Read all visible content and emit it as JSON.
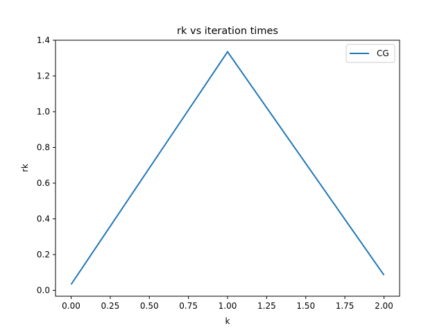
{
  "chart_data": {
    "type": "line",
    "title": "rk vs iteration times",
    "xlabel": "k",
    "ylabel": "rk",
    "xlim": [
      -0.1,
      2.1
    ],
    "ylim": [
      -0.033,
      1.4
    ],
    "x_ticks": [
      0.0,
      0.25,
      0.5,
      0.75,
      1.0,
      1.25,
      1.5,
      1.75,
      2.0
    ],
    "x_tick_labels": [
      "0.00",
      "0.25",
      "0.50",
      "0.75",
      "1.00",
      "1.25",
      "1.50",
      "1.75",
      "2.00"
    ],
    "y_ticks": [
      0.0,
      0.2,
      0.4,
      0.6,
      0.8,
      1.0,
      1.2,
      1.4
    ],
    "y_tick_labels": [
      "0.0",
      "0.2",
      "0.4",
      "0.6",
      "0.8",
      "1.0",
      "1.2",
      "1.4"
    ],
    "grid": false,
    "legend_position": "top-right",
    "series": [
      {
        "name": "CG",
        "color": "#1f77b4",
        "x": [
          0,
          1,
          2
        ],
        "y": [
          0.033,
          1.335,
          0.085
        ]
      }
    ]
  }
}
